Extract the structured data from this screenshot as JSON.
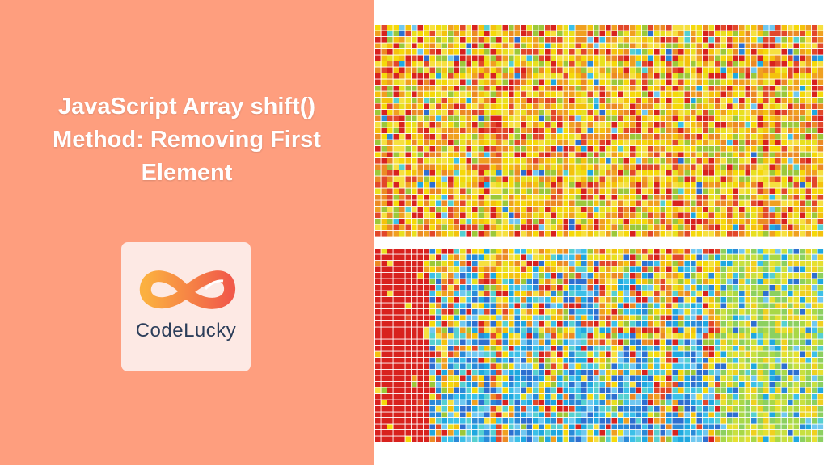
{
  "banner": {
    "title": "JavaScript Array shift() Method: Removing First Element"
  },
  "logo": {
    "text": "CodeLucky"
  }
}
